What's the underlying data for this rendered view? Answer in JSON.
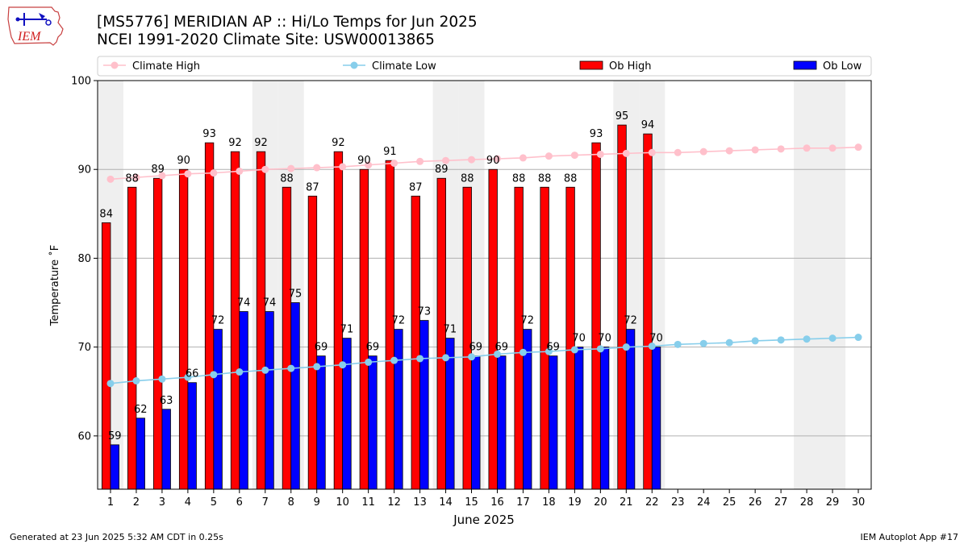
{
  "header": {
    "title_line1": "[MS5776] MERIDIAN AP :: Hi/Lo Temps for Jun 2025",
    "title_line2": "NCEI 1991-2020 Climate Site: USW00013865",
    "logo_text": "IEM"
  },
  "footer": {
    "generated": "Generated at 23 Jun 2025 5:32 AM CDT in 0.25s",
    "app": "IEM Autoplot App #17"
  },
  "colors": {
    "climate_high": "#ffc0cb",
    "climate_low": "#87ceeb",
    "ob_high": "#ff0000",
    "ob_low": "#0000ff",
    "weekend_shade": "#efefef",
    "grid": "#b0b0b0"
  },
  "chart_data": {
    "type": "bar",
    "xlabel": "June 2025",
    "ylabel": "Temperature ˚F",
    "ylim": [
      54,
      100
    ],
    "xlim": [
      0.5,
      30.5
    ],
    "yticks": [
      60,
      70,
      80,
      90,
      100
    ],
    "grid": "horizontal",
    "legend_placement": "top",
    "shaded_days": [
      1,
      7,
      8,
      14,
      15,
      21,
      22,
      28,
      29
    ],
    "days": [
      1,
      2,
      3,
      4,
      5,
      6,
      7,
      8,
      9,
      10,
      11,
      12,
      13,
      14,
      15,
      16,
      17,
      18,
      19,
      20,
      21,
      22,
      23,
      24,
      25,
      26,
      27,
      28,
      29,
      30
    ],
    "series": [
      {
        "name": "Climate High",
        "kind": "line",
        "values": [
          88.9,
          89.1,
          89.3,
          89.5,
          89.6,
          89.8,
          90.0,
          90.1,
          90.2,
          90.3,
          90.5,
          90.7,
          90.9,
          91.0,
          91.1,
          91.2,
          91.3,
          91.5,
          91.6,
          91.7,
          91.8,
          91.9,
          91.9,
          92.0,
          92.1,
          92.2,
          92.3,
          92.4,
          92.4,
          92.5
        ]
      },
      {
        "name": "Climate Low",
        "kind": "line",
        "values": [
          65.9,
          66.2,
          66.4,
          66.6,
          66.9,
          67.2,
          67.4,
          67.6,
          67.8,
          68.0,
          68.3,
          68.5,
          68.7,
          68.8,
          68.9,
          69.2,
          69.4,
          69.5,
          69.7,
          69.8,
          70.0,
          70.1,
          70.3,
          70.4,
          70.5,
          70.7,
          70.8,
          70.9,
          71.0,
          71.1
        ]
      },
      {
        "name": "Ob High",
        "kind": "bar",
        "values": [
          84,
          88,
          89,
          90,
          93,
          92,
          92,
          88,
          87,
          92,
          90,
          91,
          87,
          89,
          88,
          90,
          88,
          88,
          88,
          93,
          95,
          94
        ]
      },
      {
        "name": "Ob Low",
        "kind": "bar",
        "values": [
          59,
          62,
          63,
          66,
          72,
          74,
          74,
          75,
          69,
          71,
          69,
          72,
          73,
          71,
          69,
          69,
          72,
          69,
          70,
          70,
          72,
          70
        ]
      }
    ]
  }
}
